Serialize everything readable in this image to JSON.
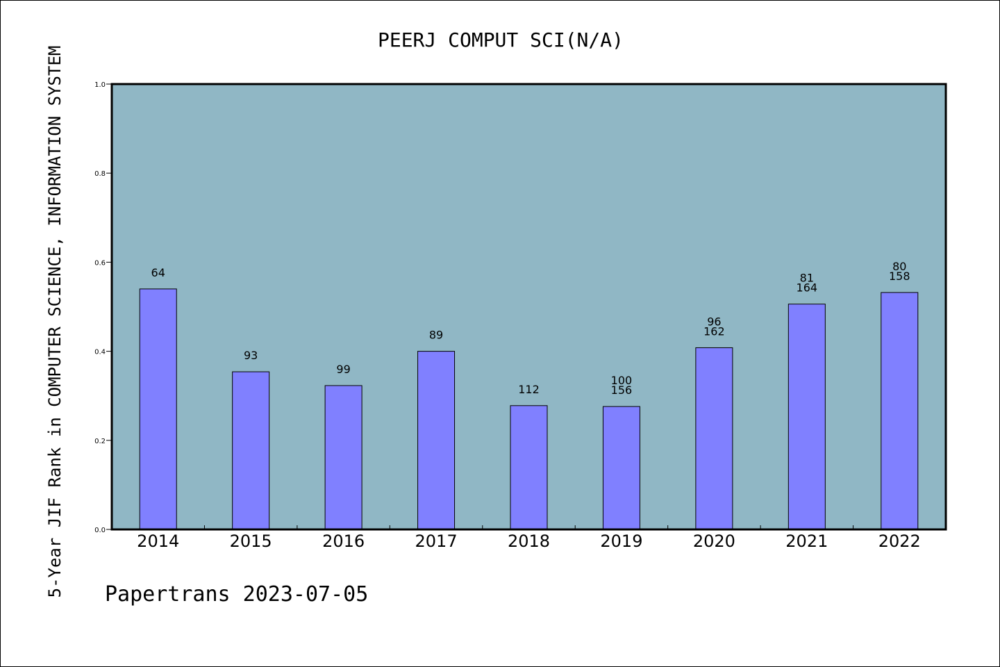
{
  "colors": {
    "plot_background": "#90b7c5",
    "bar_fill": "#8080ff",
    "bar_stroke": "#000000",
    "axis": "#000000",
    "page_background": "#ffffff"
  },
  "footer": {
    "text": "Papertrans 2023-07-05"
  },
  "chart_data": {
    "type": "bar",
    "title": "PEERJ COMPUT SCI(N/A)",
    "xlabel": "",
    "ylabel": "5-Year JIF Rank in COMPUTER SCIENCE, INFORMATION SYSTEM",
    "ylim": [
      0,
      1.0
    ],
    "yticks": [
      "0.0",
      "0.2",
      "0.4",
      "0.6",
      "0.8",
      "1.0"
    ],
    "grid": false,
    "legend": "none",
    "categories": [
      "2014",
      "2015",
      "2016",
      "2017",
      "2018",
      "2019",
      "2020",
      "2021",
      "2022"
    ],
    "values": [
      0.54,
      0.354,
      0.323,
      0.4,
      0.278,
      0.276,
      0.408,
      0.506,
      0.532
    ],
    "labels": [
      [
        "64"
      ],
      [
        "93"
      ],
      [
        "99"
      ],
      [
        "89"
      ],
      [
        "112"
      ],
      [
        "100",
        "156"
      ],
      [
        "96",
        "162"
      ],
      [
        "81",
        "164"
      ],
      [
        "80",
        "158"
      ]
    ]
  }
}
